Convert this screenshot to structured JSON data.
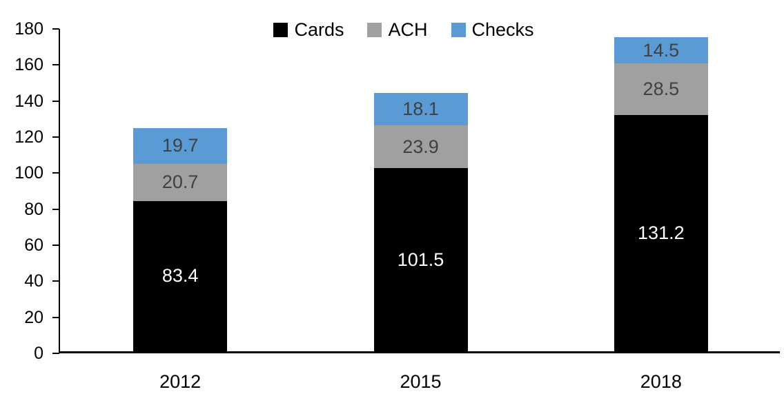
{
  "chart_data": {
    "type": "bar",
    "stacked": true,
    "title": "",
    "xlabel": "",
    "ylabel": "",
    "categories": [
      "2012",
      "2015",
      "2018"
    ],
    "series": [
      {
        "name": "Cards",
        "values": [
          83.4,
          101.5,
          131.2
        ],
        "color": "#000000",
        "label_color": "#ffffff"
      },
      {
        "name": "ACH",
        "values": [
          20.7,
          23.9,
          28.5
        ],
        "color": "#a0a0a0",
        "label_color": "#404040"
      },
      {
        "name": "Checks",
        "values": [
          19.7,
          18.1,
          14.5
        ],
        "color": "#5b9bd5",
        "label_color": "#404040"
      }
    ],
    "totals": [
      123.8,
      143.5,
      174.2
    ],
    "ylim": [
      0,
      180
    ],
    "yticks": [
      0,
      20,
      40,
      60,
      80,
      100,
      120,
      140,
      160,
      180
    ],
    "legend_position": "top-center",
    "grid": false,
    "axis_color": "#000000"
  }
}
